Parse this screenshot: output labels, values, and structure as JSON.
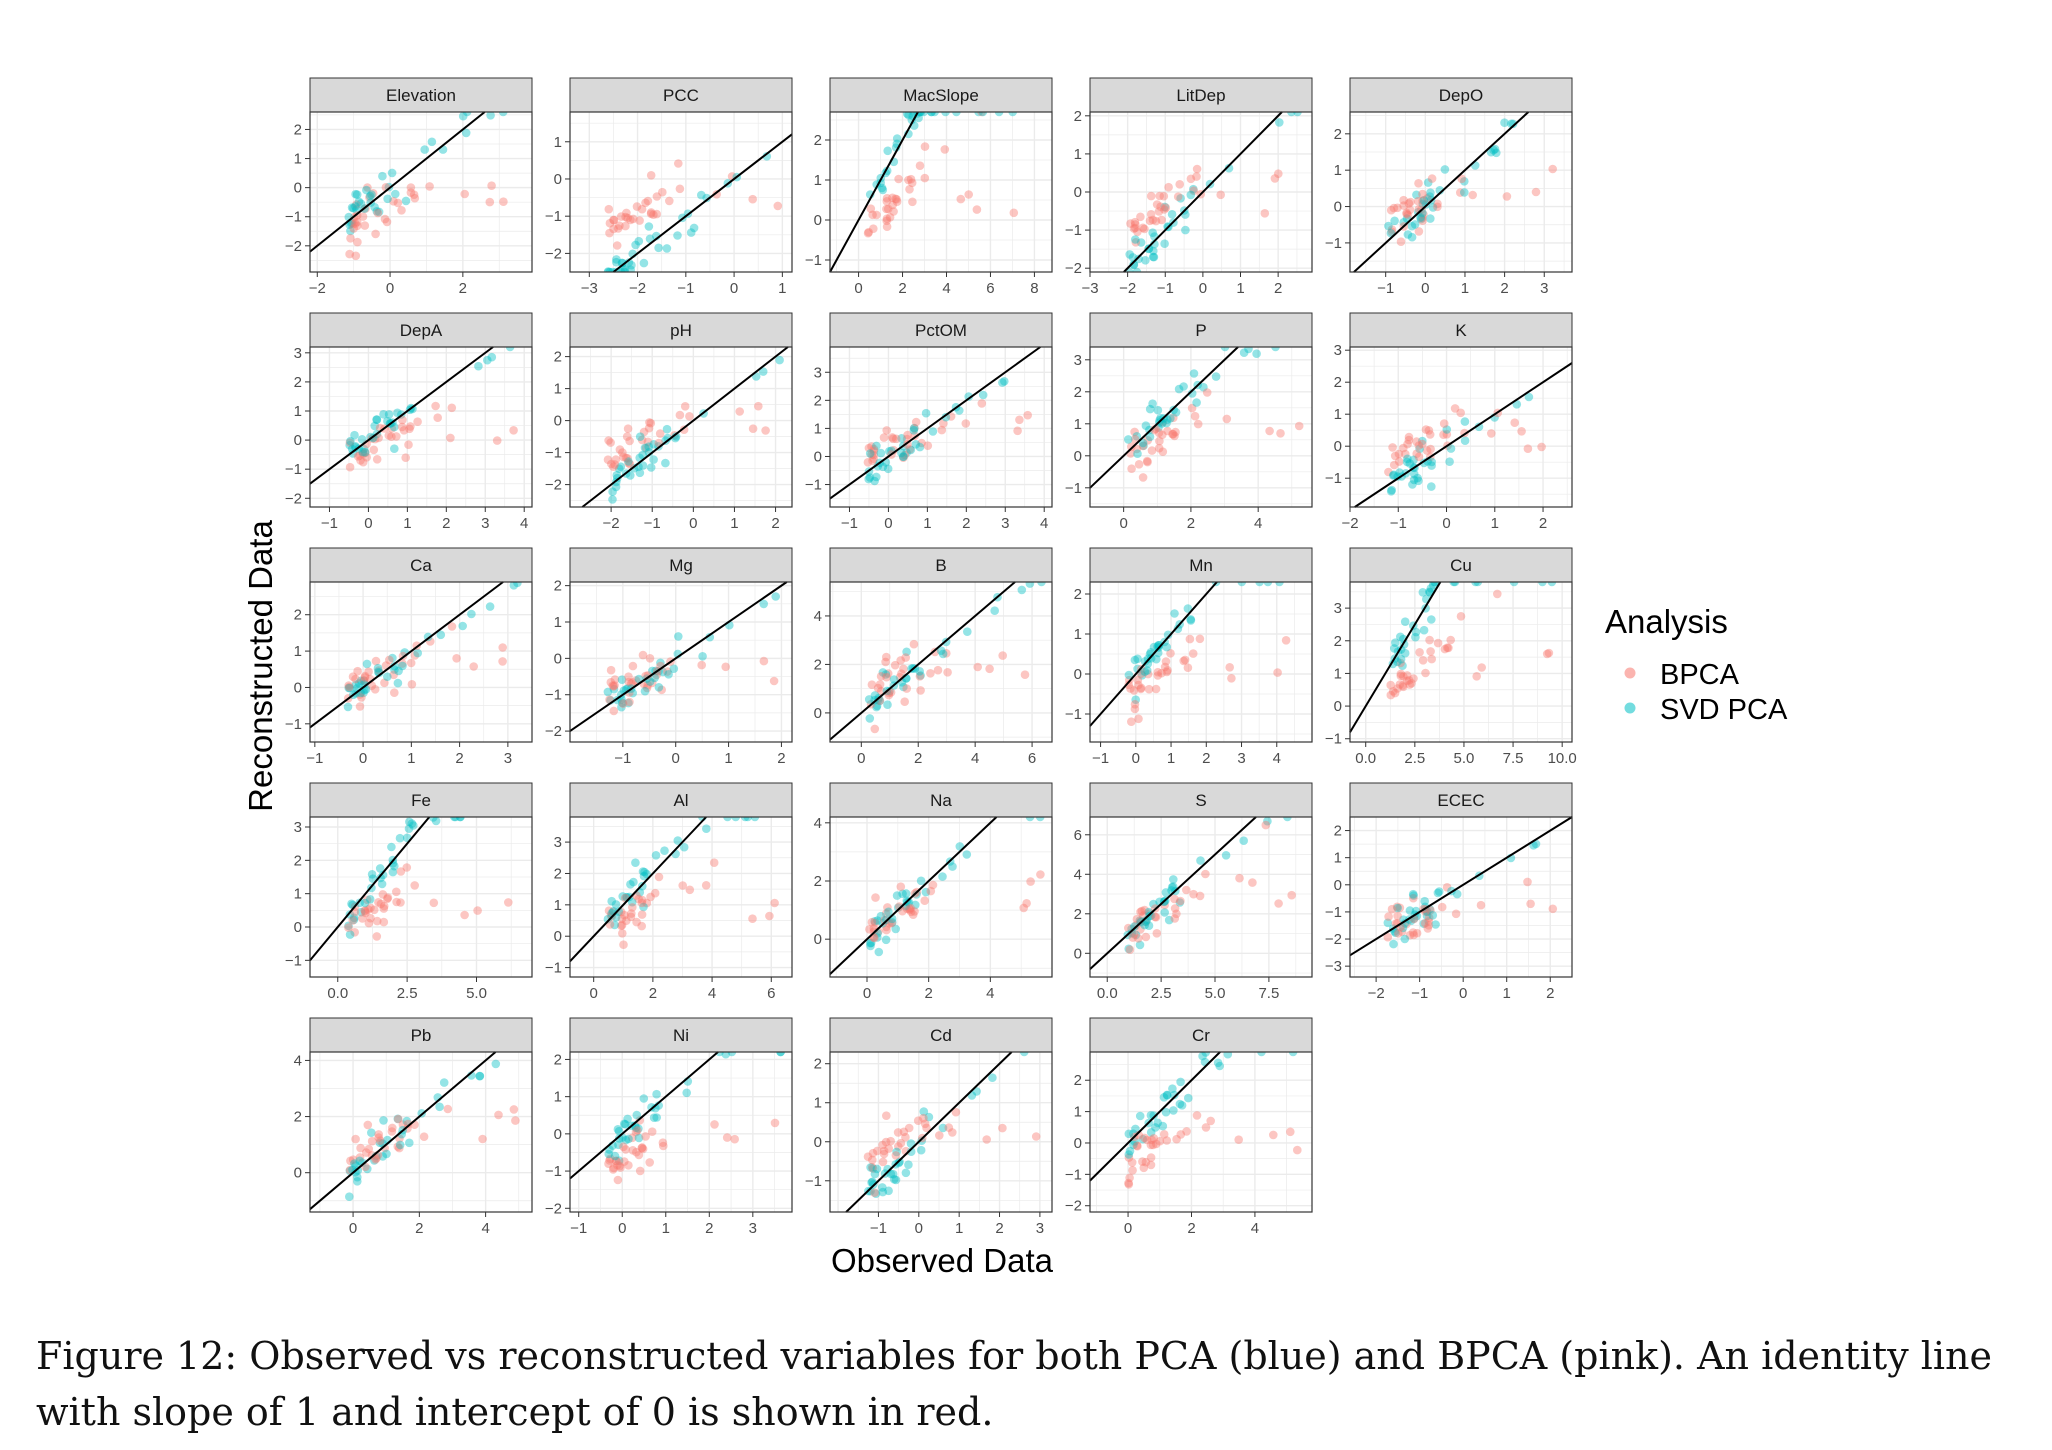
{
  "figure": {
    "y_axis_label": "Reconstructed Data",
    "x_axis_label": "Observed Data",
    "legend": {
      "title": "Analysis",
      "entries": [
        {
          "label": "BPCA",
          "color": "#F8766D"
        },
        {
          "label": "SVD PCA",
          "color": "#00BFC4"
        }
      ]
    },
    "caption": "Figure 12: Observed vs reconstructed variables for both PCA (blue) and BPCA (pink). An identity line with slope of 1 and intercept of 0 is shown in red."
  },
  "chart_data": [
    {
      "type": "scatter",
      "title": "Elevation",
      "xlim": [
        -2.2,
        3.9
      ],
      "ylim": [
        -2.9,
        2.6
      ],
      "xticks": [
        "-2",
        "0",
        "2"
      ],
      "yticks": [
        "-2",
        "-1",
        "0",
        "1",
        "2"
      ]
    },
    {
      "type": "scatter",
      "title": "PCC",
      "xlim": [
        -3.4,
        1.2
      ],
      "ylim": [
        -2.5,
        1.8
      ],
      "xticks": [
        "-3",
        "-2",
        "-1",
        "0",
        "1"
      ],
      "yticks": [
        "-2",
        "-1",
        "0",
        "1"
      ]
    },
    {
      "type": "scatter",
      "title": "MacSlope",
      "xlim": [
        -1.3,
        8.8
      ],
      "ylim": [
        -1.3,
        2.7
      ],
      "xticks": [
        "0",
        "2",
        "4",
        "6",
        "8"
      ],
      "yticks": [
        "-1",
        "0",
        "1",
        "2"
      ]
    },
    {
      "type": "scatter",
      "title": "LitDep",
      "xlim": [
        -3,
        2.9
      ],
      "ylim": [
        -2.1,
        2.1
      ],
      "xticks": [
        "-3",
        "-2",
        "-1",
        "0",
        "1",
        "2"
      ],
      "yticks": [
        "-2",
        "-1",
        "0",
        "1",
        "2"
      ]
    },
    {
      "type": "scatter",
      "title": "DepO",
      "xlim": [
        -1.9,
        3.7
      ],
      "ylim": [
        -1.8,
        2.6
      ],
      "xticks": [
        "-1",
        "0",
        "1",
        "2",
        "3"
      ],
      "yticks": [
        "-1",
        "0",
        "1",
        "2"
      ]
    },
    {
      "type": "scatter",
      "title": "DepA",
      "xlim": [
        -1.5,
        4.2
      ],
      "ylim": [
        -2.3,
        3.2
      ],
      "xticks": [
        "-1",
        "0",
        "1",
        "2",
        "3",
        "4"
      ],
      "yticks": [
        "-2",
        "-1",
        "0",
        "1",
        "2",
        "3"
      ]
    },
    {
      "type": "scatter",
      "title": "pH",
      "xlim": [
        -3,
        2.4
      ],
      "ylim": [
        -2.7,
        2.3
      ],
      "xticks": [
        "-2",
        "-1",
        "0",
        "1",
        "2"
      ],
      "yticks": [
        "-2",
        "-1",
        "0",
        "1",
        "2"
      ]
    },
    {
      "type": "scatter",
      "title": "PctOM",
      "xlim": [
        -1.5,
        4.2
      ],
      "ylim": [
        -1.8,
        3.9
      ],
      "xticks": [
        "-1",
        "0",
        "1",
        "2",
        "3",
        "4"
      ],
      "yticks": [
        "-1",
        "0",
        "1",
        "2",
        "3"
      ]
    },
    {
      "type": "scatter",
      "title": "P",
      "xlim": [
        -1,
        5.6
      ],
      "ylim": [
        -1.6,
        3.4
      ],
      "xticks": [
        "0",
        "2",
        "4"
      ],
      "yticks": [
        "-1",
        "0",
        "1",
        "2",
        "3"
      ]
    },
    {
      "type": "scatter",
      "title": "K",
      "xlim": [
        -2,
        2.6
      ],
      "ylim": [
        -1.9,
        3.1
      ],
      "xticks": [
        "-2",
        "-1",
        "0",
        "1",
        "2"
      ],
      "yticks": [
        "-1",
        "0",
        "1",
        "2",
        "3"
      ]
    },
    {
      "type": "scatter",
      "title": "Ca",
      "xlim": [
        -1.1,
        3.5
      ],
      "ylim": [
        -1.5,
        2.9
      ],
      "xticks": [
        "-1",
        "0",
        "1",
        "2",
        "3"
      ],
      "yticks": [
        "-1",
        "0",
        "1",
        "2"
      ]
    },
    {
      "type": "scatter",
      "title": "Mg",
      "xlim": [
        -2,
        2.2
      ],
      "ylim": [
        -2.3,
        2.1
      ],
      "xticks": [
        "-1",
        "0",
        "1",
        "2"
      ],
      "yticks": [
        "-2",
        "-1",
        "0",
        "1",
        "2"
      ]
    },
    {
      "type": "scatter",
      "title": "B",
      "xlim": [
        -1.1,
        6.7
      ],
      "ylim": [
        -1.2,
        5.4
      ],
      "xticks": [
        "0",
        "2",
        "4",
        "6"
      ],
      "yticks": [
        "0",
        "2",
        "4"
      ]
    },
    {
      "type": "scatter",
      "title": "Mn",
      "xlim": [
        -1.3,
        5
      ],
      "ylim": [
        -1.7,
        2.3
      ],
      "xticks": [
        "-1",
        "0",
        "1",
        "2",
        "3",
        "4"
      ],
      "yticks": [
        "-1",
        "0",
        "1",
        "2"
      ]
    },
    {
      "type": "scatter",
      "title": "Cu",
      "xlim": [
        -0.8,
        10.5
      ],
      "ylim": [
        -1.1,
        3.8
      ],
      "xticks": [
        "0.0",
        "2.5",
        "5.0",
        "7.5",
        "10.0"
      ],
      "yticks": [
        "-1",
        "0",
        "1",
        "2",
        "3"
      ]
    },
    {
      "type": "scatter",
      "title": "Fe",
      "xlim": [
        -1,
        7
      ],
      "ylim": [
        -1.5,
        3.3
      ],
      "xticks": [
        "0.0",
        "2.5",
        "5.0"
      ],
      "yticks": [
        "-1",
        "0",
        "1",
        "2",
        "3"
      ]
    },
    {
      "type": "scatter",
      "title": "Al",
      "xlim": [
        -0.8,
        6.7
      ],
      "ylim": [
        -1.3,
        3.8
      ],
      "xticks": [
        "0",
        "2",
        "4",
        "6"
      ],
      "yticks": [
        "-1",
        "0",
        "1",
        "2",
        "3"
      ]
    },
    {
      "type": "scatter",
      "title": "Na",
      "xlim": [
        -1.2,
        6
      ],
      "ylim": [
        -1.3,
        4.2
      ],
      "xticks": [
        "0",
        "2",
        "4"
      ],
      "yticks": [
        "0",
        "2",
        "4"
      ]
    },
    {
      "type": "scatter",
      "title": "S",
      "xlim": [
        -0.8,
        9.5
      ],
      "ylim": [
        -1.2,
        6.9
      ],
      "xticks": [
        "0.0",
        "2.5",
        "5.0",
        "7.5"
      ],
      "yticks": [
        "0",
        "2",
        "4",
        "6"
      ]
    },
    {
      "type": "scatter",
      "title": "ECEC",
      "xlim": [
        -2.6,
        2.5
      ],
      "ylim": [
        -3.4,
        2.5
      ],
      "xticks": [
        "-2",
        "-1",
        "0",
        "1",
        "2"
      ],
      "yticks": [
        "-3",
        "-2",
        "-1",
        "0",
        "1",
        "2"
      ]
    },
    {
      "type": "scatter",
      "title": "Pb",
      "xlim": [
        -1.3,
        5.4
      ],
      "ylim": [
        -1.4,
        4.3
      ],
      "xticks": [
        "0",
        "2",
        "4"
      ],
      "yticks": [
        "0",
        "2",
        "4"
      ]
    },
    {
      "type": "scatter",
      "title": "Ni",
      "xlim": [
        -1.2,
        3.9
      ],
      "ylim": [
        -2.1,
        2.2
      ],
      "xticks": [
        "-1",
        "0",
        "1",
        "2",
        "3"
      ],
      "yticks": [
        "-2",
        "-1",
        "0",
        "1",
        "2"
      ]
    },
    {
      "type": "scatter",
      "title": "Cd",
      "xlim": [
        -2.2,
        3.3
      ],
      "ylim": [
        -1.8,
        2.3
      ],
      "xticks": [
        "-1",
        "0",
        "1",
        "2",
        "3"
      ],
      "yticks": [
        "-1",
        "0",
        "1",
        "2"
      ]
    },
    {
      "type": "scatter",
      "title": "Cr",
      "xlim": [
        -1.2,
        5.8
      ],
      "ylim": [
        -2.2,
        2.9
      ],
      "xticks": [
        "0",
        "2",
        "4"
      ],
      "yticks": [
        "-2",
        "-1",
        "0",
        "1",
        "2"
      ]
    }
  ]
}
